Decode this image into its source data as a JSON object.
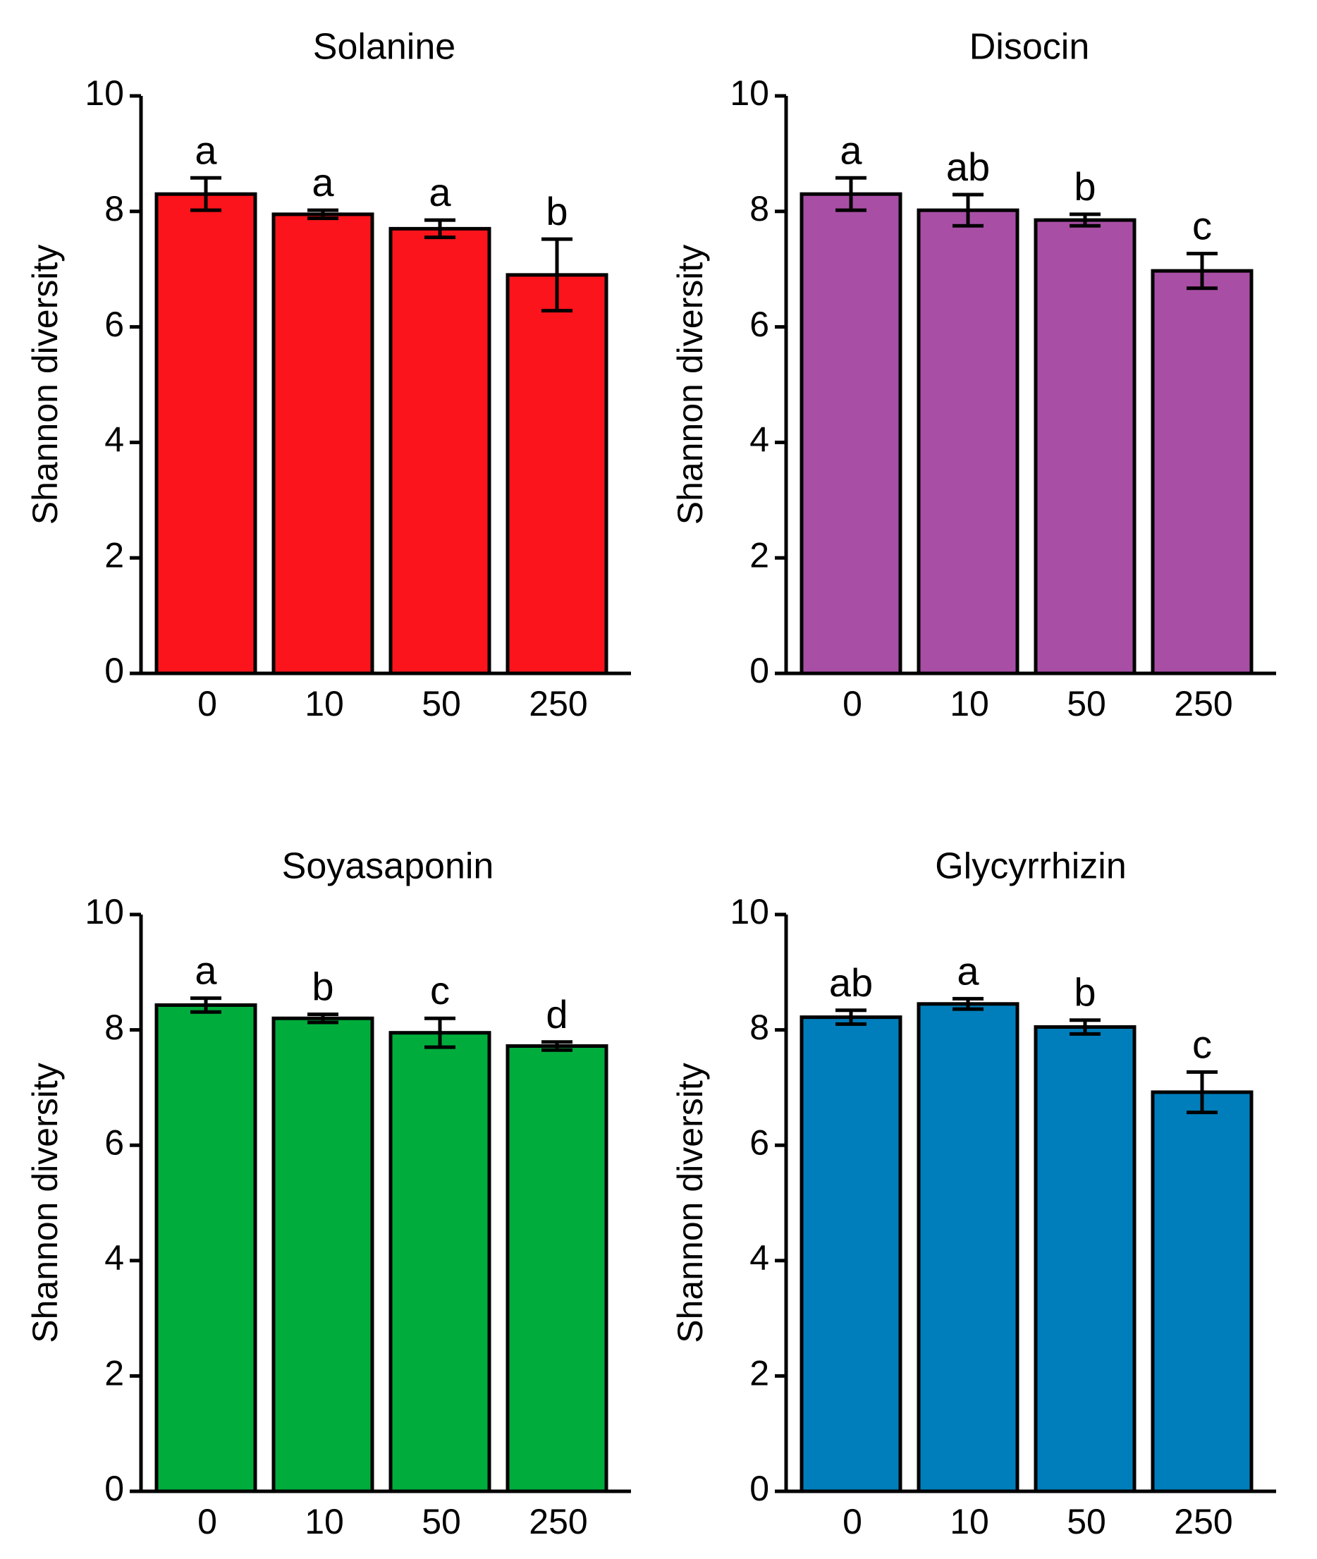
{
  "chart_data": [
    {
      "type": "bar",
      "title": "Solanine",
      "ylabel": "Shannon diversity",
      "xlabel": "",
      "categories": [
        "0",
        "10",
        "50",
        "250"
      ],
      "values": [
        8.3,
        7.95,
        7.7,
        6.9
      ],
      "errors": [
        0.28,
        0.07,
        0.15,
        0.62
      ],
      "significance": [
        "a",
        "a",
        "a",
        "b"
      ],
      "ylim": [
        0,
        10
      ],
      "yticks": [
        "0",
        "2",
        "4",
        "6",
        "8",
        "10"
      ],
      "color": "#fb141b"
    },
    {
      "type": "bar",
      "title": "Disocin",
      "ylabel": "Shannon diversity",
      "xlabel": "",
      "categories": [
        "0",
        "10",
        "50",
        "250"
      ],
      "values": [
        8.3,
        8.02,
        7.85,
        6.97
      ],
      "errors": [
        0.28,
        0.27,
        0.1,
        0.3
      ],
      "significance": [
        "a",
        "ab",
        "b",
        "c"
      ],
      "ylim": [
        0,
        10
      ],
      "yticks": [
        "0",
        "2",
        "4",
        "6",
        "8",
        "10"
      ],
      "color": "#a84fa5"
    },
    {
      "type": "bar",
      "title": "Soyasaponin",
      "ylabel": "Shannon diversity",
      "xlabel": "",
      "categories": [
        "0",
        "10",
        "50",
        "250"
      ],
      "values": [
        8.43,
        8.2,
        7.95,
        7.72
      ],
      "errors": [
        0.12,
        0.07,
        0.25,
        0.07
      ],
      "significance": [
        "a",
        "b",
        "c",
        "d"
      ],
      "ylim": [
        0,
        10
      ],
      "yticks": [
        "0",
        "2",
        "4",
        "6",
        "8",
        "10"
      ],
      "color": "#00ad3c"
    },
    {
      "type": "bar",
      "title": "Glycyrrhizin",
      "ylabel": "Shannon diversity",
      "xlabel": "",
      "categories": [
        "0",
        "10",
        "50",
        "250"
      ],
      "values": [
        8.22,
        8.45,
        8.05,
        6.92
      ],
      "errors": [
        0.12,
        0.09,
        0.12,
        0.35
      ],
      "significance": [
        "ab",
        "a",
        "b",
        "c"
      ],
      "ylim": [
        0,
        10
      ],
      "yticks": [
        "0",
        "2",
        "4",
        "6",
        "8",
        "10"
      ],
      "color": "#007ebb"
    }
  ]
}
